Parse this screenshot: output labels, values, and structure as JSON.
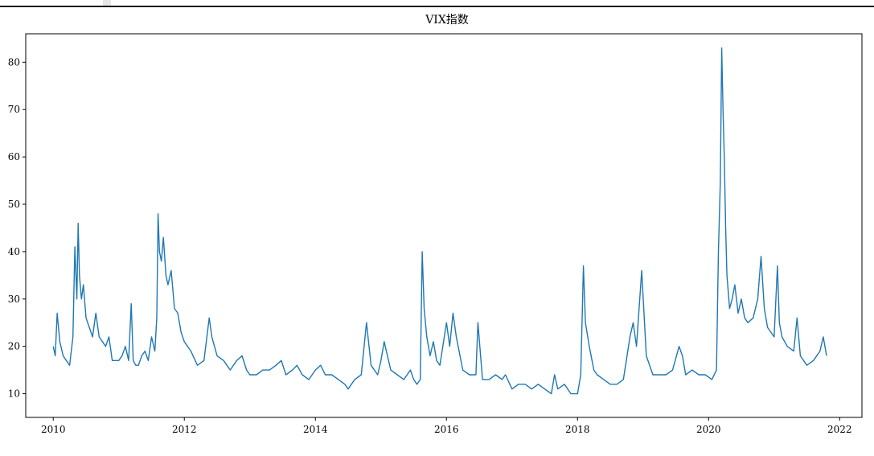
{
  "chart_data": {
    "type": "line",
    "title": "VIX指数",
    "xlabel": "",
    "ylabel": "",
    "xlim": [
      2009.58,
      2022.34
    ],
    "ylim": [
      5,
      86
    ],
    "x_ticks": [
      2010,
      2012,
      2014,
      2016,
      2018,
      2020,
      2022
    ],
    "x_tick_labels": [
      "2010",
      "2012",
      "2014",
      "2016",
      "2018",
      "2020",
      "2022"
    ],
    "y_ticks": [
      10,
      20,
      30,
      40,
      50,
      60,
      70,
      80
    ],
    "y_tick_labels": [
      "10",
      "20",
      "30",
      "40",
      "50",
      "60",
      "70",
      "80"
    ],
    "grid": false,
    "line_color": "#1f77b4",
    "series": [
      {
        "x": [
          2010.0,
          2010.03,
          2010.06,
          2010.1,
          2010.15,
          2010.2,
          2010.25,
          2010.3,
          2010.33,
          2010.36,
          2010.38,
          2010.4,
          2010.43,
          2010.46,
          2010.5,
          2010.55,
          2010.6,
          2010.65,
          2010.7,
          2010.75,
          2010.8,
          2010.85,
          2010.9,
          2010.95,
          2011.0,
          2011.05,
          2011.1,
          2011.15,
          2011.19,
          2011.22,
          2011.26,
          2011.3,
          2011.35,
          2011.4,
          2011.45,
          2011.5,
          2011.55,
          2011.58,
          2011.6,
          2011.62,
          2011.65,
          2011.68,
          2011.72,
          2011.75,
          2011.8,
          2011.85,
          2011.9,
          2011.95,
          2012.0,
          2012.1,
          2012.2,
          2012.3,
          2012.38,
          2012.42,
          2012.5,
          2012.6,
          2012.7,
          2012.8,
          2012.88,
          2012.95,
          2013.0,
          2013.1,
          2013.2,
          2013.3,
          2013.4,
          2013.48,
          2013.55,
          2013.65,
          2013.72,
          2013.8,
          2013.9,
          2014.0,
          2014.08,
          2014.15,
          2014.25,
          2014.35,
          2014.45,
          2014.5,
          2014.6,
          2014.7,
          2014.78,
          2014.85,
          2014.95,
          2015.0,
          2015.05,
          2015.15,
          2015.25,
          2015.35,
          2015.45,
          2015.5,
          2015.55,
          2015.6,
          2015.63,
          2015.66,
          2015.7,
          2015.75,
          2015.8,
          2015.85,
          2015.9,
          2016.0,
          2016.05,
          2016.1,
          2016.15,
          2016.25,
          2016.35,
          2016.45,
          2016.48,
          2016.55,
          2016.65,
          2016.75,
          2016.85,
          2016.9,
          2017.0,
          2017.1,
          2017.2,
          2017.3,
          2017.4,
          2017.5,
          2017.6,
          2017.65,
          2017.7,
          2017.8,
          2017.9,
          2018.0,
          2018.05,
          2018.09,
          2018.12,
          2018.18,
          2018.25,
          2018.3,
          2018.4,
          2018.5,
          2018.6,
          2018.7,
          2018.8,
          2018.85,
          2018.9,
          2018.98,
          2019.05,
          2019.15,
          2019.25,
          2019.35,
          2019.45,
          2019.55,
          2019.6,
          2019.65,
          2019.75,
          2019.85,
          2019.95,
          2020.05,
          2020.12,
          2020.15,
          2020.18,
          2020.2,
          2020.22,
          2020.24,
          2020.26,
          2020.28,
          2020.32,
          2020.36,
          2020.4,
          2020.45,
          2020.5,
          2020.55,
          2020.6,
          2020.68,
          2020.75,
          2020.8,
          2020.85,
          2020.9,
          2020.95,
          2021.0,
          2021.05,
          2021.08,
          2021.12,
          2021.2,
          2021.3,
          2021.35,
          2021.4,
          2021.5,
          2021.6,
          2021.7,
          2021.75,
          2021.8
        ],
        "values": [
          20,
          18,
          27,
          21,
          18,
          17,
          16,
          22,
          41,
          30,
          46,
          35,
          30,
          33,
          26,
          24,
          22,
          27,
          22,
          21,
          20,
          22,
          17,
          17,
          17,
          18,
          20,
          17,
          29,
          17,
          16,
          16,
          18,
          19,
          17,
          22,
          19,
          26,
          48,
          40,
          38,
          43,
          35,
          33,
          36,
          28,
          27,
          23,
          21,
          19,
          16,
          17,
          26,
          22,
          18,
          17,
          15,
          17,
          18,
          15,
          14,
          14,
          15,
          15,
          16,
          17,
          14,
          15,
          16,
          14,
          13,
          15,
          16,
          14,
          14,
          13,
          12,
          11,
          13,
          14,
          25,
          16,
          14,
          17,
          21,
          15,
          14,
          13,
          15,
          13,
          12,
          13,
          40,
          28,
          22,
          18,
          21,
          17,
          16,
          25,
          20,
          27,
          22,
          15,
          14,
          14,
          25,
          13,
          13,
          14,
          13,
          14,
          11,
          12,
          12,
          11,
          12,
          11,
          10,
          14,
          11,
          12,
          10,
          10,
          14,
          37,
          25,
          20,
          15,
          14,
          13,
          12,
          12,
          13,
          22,
          25,
          20,
          36,
          18,
          14,
          14,
          14,
          15,
          20,
          18,
          14,
          15,
          14,
          14,
          13,
          15,
          40,
          55,
          83,
          70,
          60,
          45,
          35,
          28,
          30,
          33,
          27,
          30,
          26,
          25,
          26,
          30,
          39,
          28,
          24,
          23,
          22,
          37,
          25,
          22,
          20,
          19,
          26,
          18,
          16,
          17,
          19,
          22,
          18
        ]
      }
    ]
  }
}
